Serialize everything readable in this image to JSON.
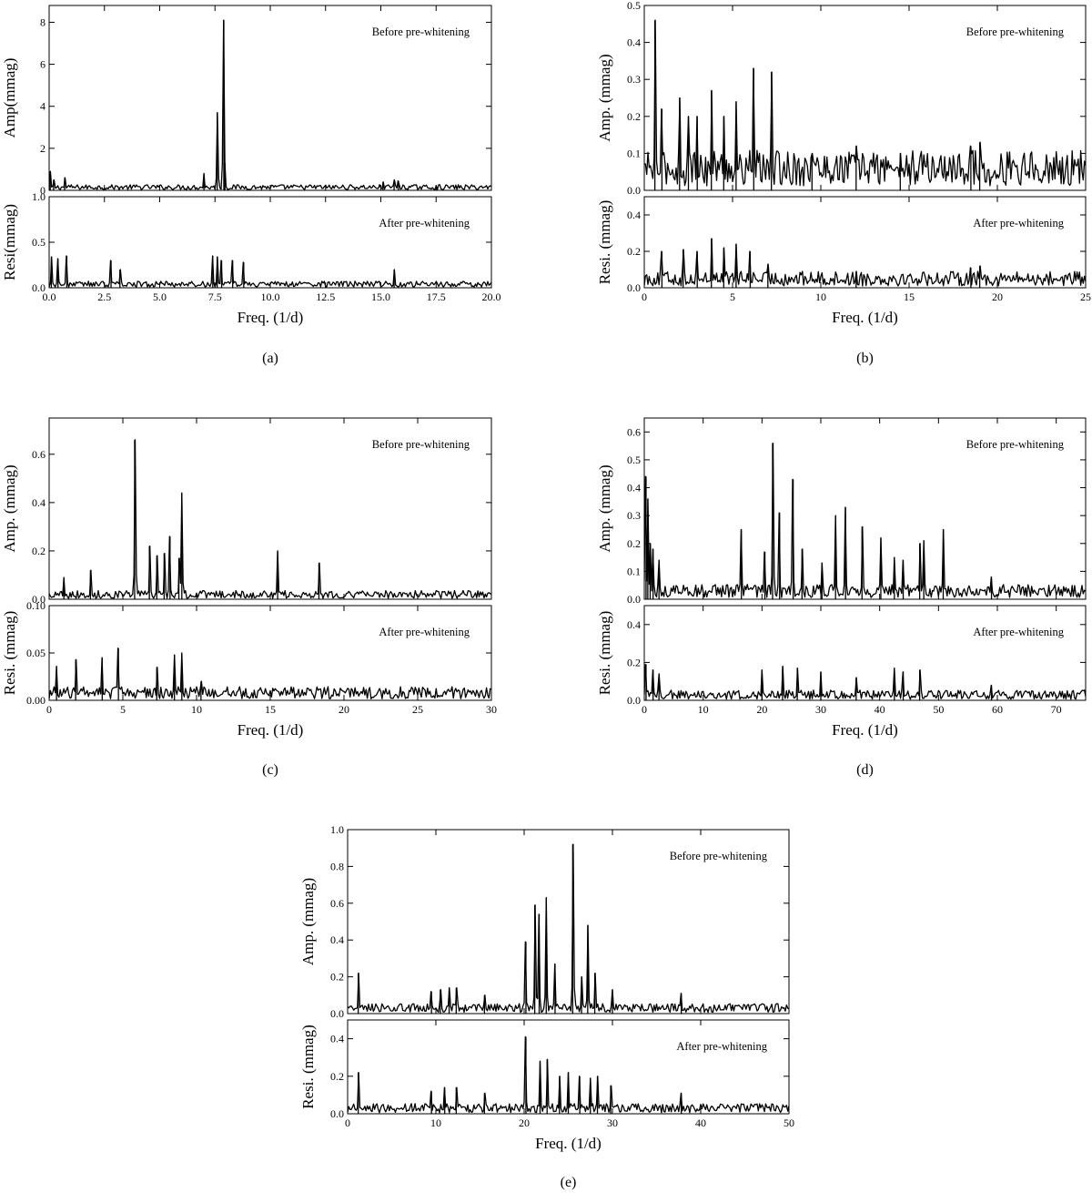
{
  "chart_data": [
    {
      "type": "line",
      "caption": "(a)",
      "xlabel": "Freq. (1/d)",
      "xlim": [
        0,
        20
      ],
      "xticks": [
        "0.0",
        "2.5",
        "5.0",
        "7.5",
        "10.0",
        "12.5",
        "15.0",
        "17.5",
        "20.0"
      ],
      "baseline": [
        0.15,
        0.04
      ],
      "top": {
        "ylabel": "Amp(mmag)",
        "annotation": "Before pre-whitening",
        "ylim": [
          0,
          8.8
        ],
        "yticks": [
          "0",
          "2",
          "4",
          "6",
          "8"
        ],
        "peaks": [
          [
            0.05,
            0.9
          ],
          [
            0.2,
            0.5
          ],
          [
            0.7,
            0.6
          ],
          [
            7.0,
            0.8
          ],
          [
            7.6,
            3.7
          ],
          [
            7.9,
            8.1
          ],
          [
            7.95,
            1.3
          ],
          [
            15.1,
            0.4
          ],
          [
            15.6,
            0.5
          ],
          [
            15.8,
            0.45
          ]
        ]
      },
      "bottom": {
        "ylabel": "Resi(mmag)",
        "annotation": "After pre-whitening",
        "ylim": [
          0,
          1.0
        ],
        "yticks": [
          "0.0",
          "0.5",
          "1.0"
        ],
        "peaks": [
          [
            0.1,
            0.34
          ],
          [
            0.4,
            0.32
          ],
          [
            0.8,
            0.35
          ],
          [
            2.8,
            0.3
          ],
          [
            3.2,
            0.2
          ],
          [
            7.4,
            0.35
          ],
          [
            7.6,
            0.34
          ],
          [
            7.8,
            0.3
          ],
          [
            8.3,
            0.3
          ],
          [
            8.8,
            0.28
          ],
          [
            15.6,
            0.2
          ]
        ]
      }
    },
    {
      "type": "line",
      "caption": "(b)",
      "xlabel": "Freq. (1/d)",
      "xlim": [
        0,
        25
      ],
      "xticks": [
        "0",
        "5",
        "10",
        "15",
        "20",
        "25"
      ],
      "baseline": [
        0.06,
        0.05
      ],
      "top": {
        "ylabel": "Amp. (mmag)",
        "annotation": "Before pre-whitening",
        "ylim": [
          0,
          0.5
        ],
        "yticks": [
          "0.0",
          "0.1",
          "0.2",
          "0.3",
          "0.4",
          "0.5"
        ],
        "peaks": [
          [
            0.6,
            0.46
          ],
          [
            1.0,
            0.22
          ],
          [
            2.0,
            0.25
          ],
          [
            2.5,
            0.2
          ],
          [
            3.0,
            0.2
          ],
          [
            3.8,
            0.27
          ],
          [
            4.5,
            0.2
          ],
          [
            5.2,
            0.24
          ],
          [
            6.2,
            0.33
          ],
          [
            7.2,
            0.32
          ],
          [
            9.5,
            0.1
          ],
          [
            12.0,
            0.12
          ],
          [
            14.5,
            0.1
          ],
          [
            18.5,
            0.12
          ],
          [
            19.0,
            0.13
          ]
        ]
      },
      "bottom": {
        "ylabel": "Resi. (mmag)",
        "annotation": "After pre-whitening",
        "ylim": [
          0,
          0.5
        ],
        "yticks": [
          "0.0",
          "0.2",
          "0.4"
        ],
        "peaks": [
          [
            1.0,
            0.2
          ],
          [
            2.2,
            0.21
          ],
          [
            3.0,
            0.2
          ],
          [
            3.8,
            0.27
          ],
          [
            4.5,
            0.22
          ],
          [
            5.2,
            0.24
          ],
          [
            6.0,
            0.2
          ],
          [
            7.0,
            0.13
          ],
          [
            12.0,
            0.09
          ],
          [
            18.5,
            0.11
          ],
          [
            19.0,
            0.12
          ]
        ]
      }
    },
    {
      "type": "line",
      "caption": "(c)",
      "xlabel": "Freq. (1/d)",
      "xlim": [
        0,
        30
      ],
      "xticks": [
        "0",
        "5",
        "10",
        "15",
        "20",
        "25",
        "30"
      ],
      "baseline": [
        0.02,
        0.008
      ],
      "top": {
        "ylabel": "Amp. (mmag)",
        "annotation": "Before pre-whitening",
        "ylim": [
          0,
          0.75
        ],
        "yticks": [
          "0.0",
          "0.2",
          "0.4",
          "0.6"
        ],
        "peaks": [
          [
            1.0,
            0.09
          ],
          [
            2.8,
            0.12
          ],
          [
            5.8,
            0.66
          ],
          [
            6.8,
            0.22
          ],
          [
            7.3,
            0.18
          ],
          [
            7.8,
            0.19
          ],
          [
            8.2,
            0.26
          ],
          [
            8.8,
            0.17
          ],
          [
            9.0,
            0.44
          ],
          [
            15.5,
            0.2
          ],
          [
            18.3,
            0.15
          ]
        ]
      },
      "bottom": {
        "ylabel": "Resi. (mmag)",
        "annotation": "After pre-whitening",
        "ylim": [
          0,
          0.1
        ],
        "yticks": [
          "0.00",
          "0.05",
          "0.10"
        ],
        "peaks": [
          [
            0.5,
            0.036
          ],
          [
            1.8,
            0.043
          ],
          [
            3.6,
            0.045
          ],
          [
            4.7,
            0.055
          ],
          [
            7.3,
            0.035
          ],
          [
            8.5,
            0.048
          ],
          [
            9.0,
            0.05
          ],
          [
            10.3,
            0.02
          ]
        ]
      }
    },
    {
      "type": "line",
      "caption": "(d)",
      "xlabel": "Freq. (1/d)",
      "xlim": [
        0,
        75
      ],
      "xticks": [
        "0",
        "10",
        "20",
        "30",
        "40",
        "50",
        "60",
        "70"
      ],
      "baseline": [
        0.03,
        0.03
      ],
      "top": {
        "ylabel": "Amp. (mmag)",
        "annotation": "Before pre-whitening",
        "ylim": [
          0,
          0.65
        ],
        "yticks": [
          "0.0",
          "0.1",
          "0.2",
          "0.3",
          "0.4",
          "0.5",
          "0.6"
        ],
        "peaks": [
          [
            0.3,
            0.44
          ],
          [
            0.6,
            0.36
          ],
          [
            1.0,
            0.2
          ],
          [
            1.5,
            0.18
          ],
          [
            2.5,
            0.14
          ],
          [
            16.5,
            0.25
          ],
          [
            20.5,
            0.17
          ],
          [
            21.8,
            0.56
          ],
          [
            23.0,
            0.31
          ],
          [
            25.3,
            0.43
          ],
          [
            26.8,
            0.18
          ],
          [
            30.2,
            0.13
          ],
          [
            32.5,
            0.3
          ],
          [
            34.2,
            0.33
          ],
          [
            37.0,
            0.26
          ],
          [
            40.2,
            0.22
          ],
          [
            42.5,
            0.15
          ],
          [
            44.0,
            0.14
          ],
          [
            46.8,
            0.2
          ],
          [
            47.5,
            0.21
          ],
          [
            50.8,
            0.25
          ],
          [
            59.0,
            0.08
          ]
        ]
      },
      "bottom": {
        "ylabel": "Resi. (mmag)",
        "annotation": "After pre-whitening",
        "ylim": [
          0,
          0.5
        ],
        "yticks": [
          "0.0",
          "0.2",
          "0.4"
        ],
        "peaks": [
          [
            0.3,
            0.19
          ],
          [
            1.5,
            0.16
          ],
          [
            2.5,
            0.14
          ],
          [
            20.0,
            0.16
          ],
          [
            23.5,
            0.18
          ],
          [
            26.0,
            0.17
          ],
          [
            30.0,
            0.15
          ],
          [
            36.0,
            0.12
          ],
          [
            42.5,
            0.17
          ],
          [
            44.0,
            0.15
          ],
          [
            46.8,
            0.16
          ],
          [
            59.0,
            0.08
          ]
        ]
      }
    },
    {
      "type": "line",
      "caption": "(e)",
      "xlabel": "Freq. (1/d)",
      "xlim": [
        0,
        50
      ],
      "xticks": [
        "0",
        "10",
        "20",
        "30",
        "40",
        "50"
      ],
      "baseline": [
        0.03,
        0.03
      ],
      "top": {
        "ylabel": "Amp. (mmag)",
        "annotation": "Before pre-whitening",
        "ylim": [
          0,
          1.0
        ],
        "yticks": [
          "0.0",
          "0.2",
          "0.4",
          "0.6",
          "0.8",
          "1.0"
        ],
        "peaks": [
          [
            1.2,
            0.22
          ],
          [
            9.5,
            0.12
          ],
          [
            10.5,
            0.13
          ],
          [
            11.5,
            0.14
          ],
          [
            12.3,
            0.14
          ],
          [
            15.5,
            0.1
          ],
          [
            20.2,
            0.39
          ],
          [
            21.2,
            0.59
          ],
          [
            21.7,
            0.54
          ],
          [
            22.5,
            0.63
          ],
          [
            23.5,
            0.27
          ],
          [
            25.5,
            0.92
          ],
          [
            26.5,
            0.2
          ],
          [
            27.2,
            0.48
          ],
          [
            28.0,
            0.22
          ],
          [
            30.0,
            0.13
          ],
          [
            37.8,
            0.11
          ]
        ]
      },
      "bottom": {
        "ylabel": "Resi. (mmag)",
        "annotation": "After pre-whitening",
        "ylim": [
          0,
          0.5
        ],
        "yticks": [
          "0.0",
          "0.2",
          "0.4"
        ],
        "peaks": [
          [
            1.2,
            0.22
          ],
          [
            9.5,
            0.12
          ],
          [
            11.0,
            0.14
          ],
          [
            12.3,
            0.14
          ],
          [
            15.5,
            0.11
          ],
          [
            20.2,
            0.41
          ],
          [
            21.8,
            0.28
          ],
          [
            22.6,
            0.29
          ],
          [
            24.0,
            0.2
          ],
          [
            25.0,
            0.22
          ],
          [
            26.3,
            0.2
          ],
          [
            27.5,
            0.19
          ],
          [
            28.3,
            0.2
          ],
          [
            29.8,
            0.15
          ],
          [
            37.8,
            0.11
          ]
        ]
      }
    }
  ]
}
